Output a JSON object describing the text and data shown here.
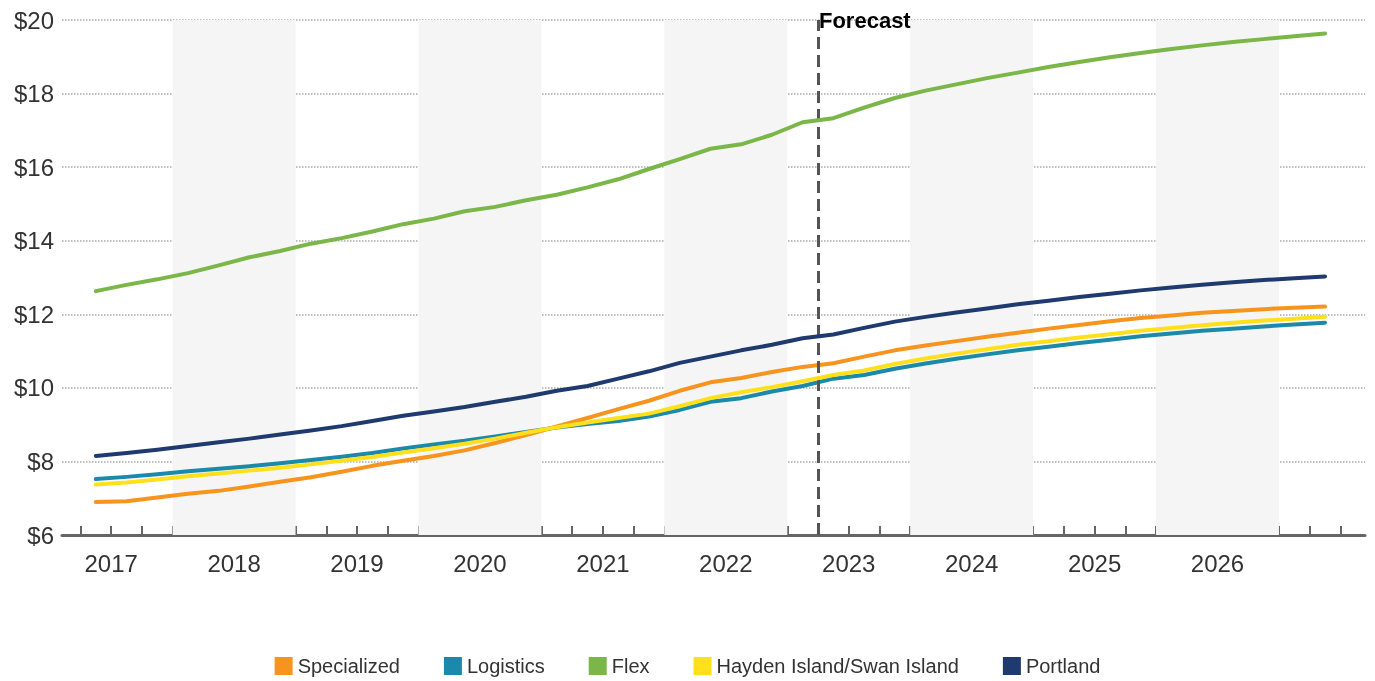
{
  "chart_data": {
    "type": "line",
    "x": [
      2017.375,
      2017.625,
      2017.875,
      2018.125,
      2018.375,
      2018.625,
      2018.875,
      2019.125,
      2019.375,
      2019.625,
      2019.875,
      2020.125,
      2020.375,
      2020.625,
      2020.875,
      2021.125,
      2021.375,
      2021.625,
      2021.875,
      2022.125,
      2022.375,
      2022.625,
      2022.875,
      2023.125,
      2023.375,
      2023.625,
      2023.875,
      2024.125,
      2024.375,
      2024.625,
      2024.875,
      2025.125,
      2025.375,
      2025.625,
      2025.875,
      2026.125,
      2026.375,
      2026.625,
      2026.875,
      2027.125,
      2027.375
    ],
    "series": [
      {
        "name": "Specialized",
        "color": "#f7941d",
        "values": [
          6.9,
          6.92,
          7.02,
          7.12,
          7.2,
          7.32,
          7.45,
          7.57,
          7.72,
          7.88,
          8.02,
          8.15,
          8.3,
          8.5,
          8.72,
          8.95,
          9.18,
          9.42,
          9.65,
          9.92,
          10.15,
          10.27,
          10.43,
          10.57,
          10.67,
          10.85,
          11.02,
          11.15,
          11.27,
          11.39,
          11.5,
          11.61,
          11.71,
          11.81,
          11.9,
          11.97,
          12.04,
          12.09,
          12.14,
          12.18,
          12.21
        ]
      },
      {
        "name": "Logistics",
        "color": "#1b8aaa",
        "values": [
          7.52,
          7.58,
          7.65,
          7.73,
          7.8,
          7.87,
          7.95,
          8.04,
          8.13,
          8.23,
          8.35,
          8.46,
          8.56,
          8.68,
          8.8,
          8.92,
          9.02,
          9.1,
          9.22,
          9.4,
          9.62,
          9.72,
          9.9,
          10.05,
          10.25,
          10.35,
          10.52,
          10.66,
          10.79,
          10.91,
          11.02,
          11.12,
          11.22,
          11.31,
          11.4,
          11.48,
          11.55,
          11.61,
          11.67,
          11.72,
          11.77
        ]
      },
      {
        "name": "Flex",
        "color": "#7ab648",
        "values": [
          12.63,
          12.8,
          12.95,
          13.12,
          13.33,
          13.55,
          13.72,
          13.92,
          14.07,
          14.25,
          14.45,
          14.6,
          14.8,
          14.92,
          15.1,
          15.25,
          15.45,
          15.67,
          15.95,
          16.22,
          16.5,
          16.62,
          16.88,
          17.22,
          17.33,
          17.62,
          17.88,
          18.08,
          18.25,
          18.42,
          18.57,
          18.72,
          18.86,
          18.99,
          19.1,
          19.21,
          19.31,
          19.4,
          19.48,
          19.56,
          19.63
        ]
      },
      {
        "name": "Hayden Island/Swan Island",
        "color": "#ffe01b",
        "values": [
          7.37,
          7.43,
          7.51,
          7.6,
          7.67,
          7.75,
          7.83,
          7.92,
          8.02,
          8.12,
          8.24,
          8.36,
          8.48,
          8.62,
          8.78,
          8.93,
          9.06,
          9.18,
          9.3,
          9.5,
          9.72,
          9.88,
          10.02,
          10.18,
          10.35,
          10.47,
          10.65,
          10.8,
          10.93,
          11.05,
          11.17,
          11.27,
          11.37,
          11.46,
          11.55,
          11.63,
          11.7,
          11.77,
          11.83,
          11.88,
          11.93
        ]
      },
      {
        "name": "Portland",
        "color": "#1f3a6e",
        "values": [
          8.15,
          8.23,
          8.32,
          8.42,
          8.52,
          8.62,
          8.73,
          8.84,
          8.96,
          9.1,
          9.24,
          9.36,
          9.48,
          9.62,
          9.76,
          9.92,
          10.05,
          10.25,
          10.45,
          10.68,
          10.85,
          11.02,
          11.17,
          11.35,
          11.45,
          11.63,
          11.8,
          11.93,
          12.05,
          12.16,
          12.27,
          12.37,
          12.47,
          12.56,
          12.65,
          12.73,
          12.8,
          12.87,
          12.93,
          12.98,
          13.03
        ]
      }
    ],
    "xlim": [
      2017.1,
      2027.7
    ],
    "xticks": [
      {
        "value": 2017.25,
        "label": null
      },
      {
        "value": 2017.5,
        "label": "2017"
      },
      {
        "value": 2017.75,
        "label": null
      },
      {
        "value": 2018,
        "label": null
      },
      {
        "value": 2018.25,
        "label": null
      },
      {
        "value": 2018.5,
        "label": "2018"
      },
      {
        "value": 2018.75,
        "label": null
      },
      {
        "value": 2019,
        "label": null
      },
      {
        "value": 2019.25,
        "label": null
      },
      {
        "value": 2019.5,
        "label": "2019"
      },
      {
        "value": 2019.75,
        "label": null
      },
      {
        "value": 2020,
        "label": null
      },
      {
        "value": 2020.25,
        "label": null
      },
      {
        "value": 2020.5,
        "label": "2020"
      },
      {
        "value": 2020.75,
        "label": null
      },
      {
        "value": 2021,
        "label": null
      },
      {
        "value": 2021.25,
        "label": null
      },
      {
        "value": 2021.5,
        "label": "2021"
      },
      {
        "value": 2021.75,
        "label": null
      },
      {
        "value": 2022,
        "label": null
      },
      {
        "value": 2022.25,
        "label": null
      },
      {
        "value": 2022.5,
        "label": "2022"
      },
      {
        "value": 2022.75,
        "label": null
      },
      {
        "value": 2023,
        "label": null
      },
      {
        "value": 2023.25,
        "label": null
      },
      {
        "value": 2023.5,
        "label": "2023"
      },
      {
        "value": 2023.75,
        "label": null
      },
      {
        "value": 2024,
        "label": null
      },
      {
        "value": 2024.25,
        "label": null
      },
      {
        "value": 2024.5,
        "label": "2024"
      },
      {
        "value": 2024.75,
        "label": null
      },
      {
        "value": 2025,
        "label": null
      },
      {
        "value": 2025.25,
        "label": null
      },
      {
        "value": 2025.5,
        "label": "2025"
      },
      {
        "value": 2025.75,
        "label": null
      },
      {
        "value": 2026,
        "label": null
      },
      {
        "value": 2026.25,
        "label": null
      },
      {
        "value": 2026.5,
        "label": "2026"
      },
      {
        "value": 2026.75,
        "label": null
      },
      {
        "value": 2027,
        "label": null
      },
      {
        "value": 2027.25,
        "label": null
      },
      {
        "value": 2027.5,
        "label": null
      }
    ],
    "ylim": [
      6,
      20
    ],
    "yticks": [
      {
        "value": 6,
        "label": "$6"
      },
      {
        "value": 8,
        "label": "$8"
      },
      {
        "value": 10,
        "label": "$10"
      },
      {
        "value": 12,
        "label": "$12"
      },
      {
        "value": 14,
        "label": "$14"
      },
      {
        "value": 16,
        "label": "$16"
      },
      {
        "value": 18,
        "label": "$18"
      },
      {
        "value": 20,
        "label": "$20"
      }
    ],
    "ref_lines": [
      {
        "axis": "x",
        "value": 2023.25,
        "label": "Forecast",
        "color": "#555555",
        "line_style": "dashed"
      }
    ],
    "bands": [
      {
        "axis": "x",
        "from": 2018,
        "to": 2019,
        "color": "#f5f5f5"
      },
      {
        "axis": "x",
        "from": 2020,
        "to": 2021,
        "color": "#f5f5f5"
      },
      {
        "axis": "x",
        "from": 2022,
        "to": 2023,
        "color": "#f5f5f5"
      },
      {
        "axis": "x",
        "from": 2024,
        "to": 2025,
        "color": "#f5f5f5"
      },
      {
        "axis": "x",
        "from": 2026,
        "to": 2027,
        "color": "#f5f5f5"
      }
    ],
    "grid": "y",
    "legend": "bottom",
    "marker": "none",
    "line_style": "solid"
  }
}
